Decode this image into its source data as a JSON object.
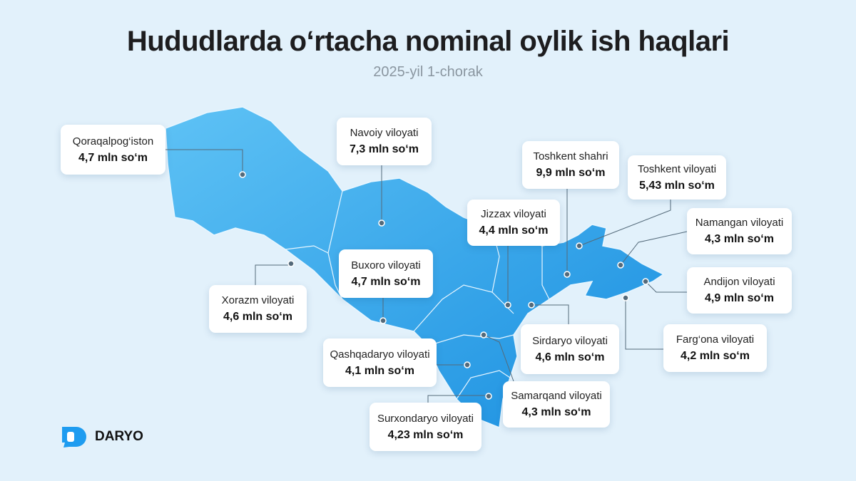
{
  "header": {
    "title": "Hududlarda o‘rtacha nominal oylik ish haqlari",
    "subtitle": "2025-yil 1-chorak"
  },
  "regions": [
    {
      "name": "Qoraqalpog‘iston",
      "value": "4,7 mln so‘m"
    },
    {
      "name": "Navoiy viloyati",
      "value": "7,3 mln so‘m"
    },
    {
      "name": "Toshkent shahri",
      "value": "9,9 mln so‘m"
    },
    {
      "name": "Toshkent viloyati",
      "value": "5,43 mln so‘m"
    },
    {
      "name": "Jizzax viloyati",
      "value": "4,4 mln so‘m"
    },
    {
      "name": "Namangan viloyati",
      "value": "4,3 mln so‘m"
    },
    {
      "name": "Buxoro viloyati",
      "value": "4,7 mln so‘m"
    },
    {
      "name": "Andijon viloyati",
      "value": "4,9 mln so‘m"
    },
    {
      "name": "Xorazm viloyati",
      "value": "4,6 mln so‘m"
    },
    {
      "name": "Sirdaryo viloyati",
      "value": "4,6 mln so‘m"
    },
    {
      "name": "Farg‘ona viloyati",
      "value": "4,2 mln so‘m"
    },
    {
      "name": "Qashqadaryo viloyati",
      "value": "4,1 mln so‘m"
    },
    {
      "name": "Samarqand viloyati",
      "value": "4,3 mln so‘m"
    },
    {
      "name": "Surxondaryo viloyati",
      "value": "4,23 mln so‘m"
    }
  ],
  "logo": "DARYO"
}
